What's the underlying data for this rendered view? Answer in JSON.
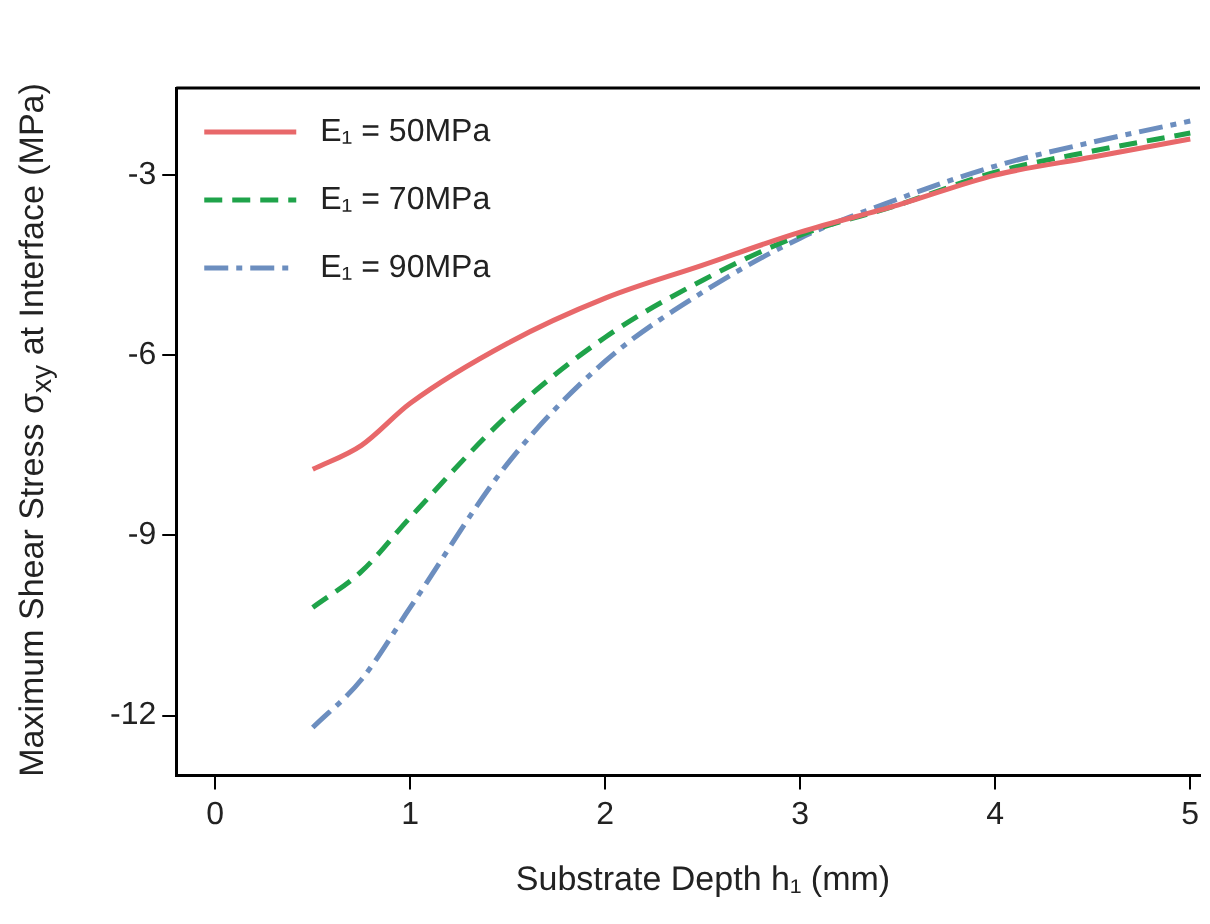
{
  "chart_data": {
    "type": "line",
    "xlabel": "Substrate Depth h₁ (mm)",
    "ylabel": "Maximum Shear Stress σ$_{xy}$ at Interface (MPa)",
    "x": [
      0.5,
      0.75,
      1,
      1.5,
      2,
      2.5,
      3,
      3.5,
      4,
      4.5,
      5
    ],
    "series": [
      {
        "name": "E₁ = 50MPa",
        "color": "#e8686a",
        "line_style": "solid",
        "values": [
          -7.9,
          -7.5,
          -6.8,
          -5.8,
          -5.05,
          -4.5,
          -3.95,
          -3.5,
          -3.0,
          -2.7,
          -2.4
        ]
      },
      {
        "name": "E₁ = 70MPa",
        "color": "#1fa34a",
        "line_style": "dashed",
        "values": [
          -10.2,
          -9.6,
          -8.7,
          -7.0,
          -5.7,
          -4.75,
          -4.0,
          -3.5,
          -2.95,
          -2.6,
          -2.3
        ]
      },
      {
        "name": "E₁ = 90MPa",
        "color": "#6c8ebf",
        "line_style": "dashdot",
        "values": [
          -12.2,
          -11.4,
          -10.2,
          -7.8,
          -6.1,
          -4.95,
          -4.05,
          -3.4,
          -2.85,
          -2.45,
          -2.1
        ]
      }
    ],
    "xlim": [
      -0.2,
      5.05
    ],
    "xticks": [
      0,
      1,
      2,
      3,
      4,
      5
    ],
    "ylim": [
      -13,
      -1.55
    ],
    "yticks": [
      -3,
      -6,
      -9,
      -12
    ],
    "grid": false,
    "legend": "top left",
    "marker": "none"
  }
}
